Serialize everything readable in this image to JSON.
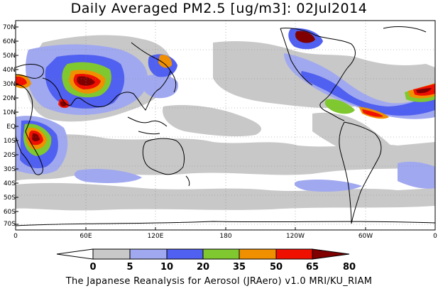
{
  "title": "Daily Averaged PM2.5 [ug/m3]: 02Jul2014",
  "credit": "The Japanese Reanalysis for Aerosol (JRAero) v1.0 MRI/KU_RIAM",
  "lat_labels": [
    "70N",
    "60N",
    "50N",
    "40N",
    "30N",
    "20N",
    "10N",
    "EQ",
    "10S",
    "20S",
    "30S",
    "40S",
    "50S",
    "60S",
    "70S"
  ],
  "lon_labels": [
    "0",
    "60E",
    "120E",
    "180",
    "120W",
    "60W",
    "0"
  ],
  "colorbar": {
    "tick_labels": [
      "0",
      "5",
      "10",
      "20",
      "35",
      "50",
      "65",
      "80"
    ],
    "colors": [
      "#ffffff",
      "#c8c8c8",
      "#a0a8f0",
      "#5060f0",
      "#80c830",
      "#f09000",
      "#f01000",
      "#800000"
    ]
  }
}
